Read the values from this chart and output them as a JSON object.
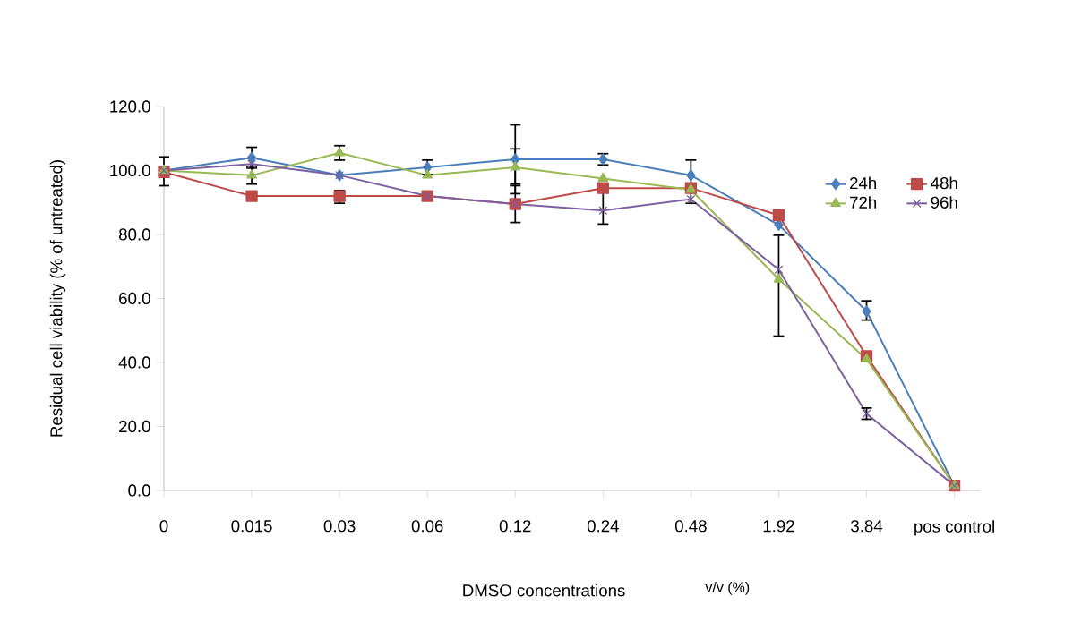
{
  "chart_data": {
    "type": "line",
    "xlabel": "DMSO concentrations",
    "ylabel": "Residual cell viability (% of untreated)",
    "annotations": [
      "v/v (%)"
    ],
    "categories": [
      "0",
      "0.015",
      "0.03",
      "0.06",
      "0.12",
      "0.24",
      "0.48",
      "1.92",
      "3.84",
      "pos control"
    ],
    "ylim": [
      0,
      120
    ],
    "yticks": [
      {
        "value": 0,
        "label": "0.0"
      },
      {
        "value": 20,
        "label": "20.0"
      },
      {
        "value": 40,
        "label": "40.0"
      },
      {
        "value": 60,
        "label": "60.0"
      },
      {
        "value": 80,
        "label": "80.0"
      },
      {
        "value": 100,
        "label": "100.0"
      },
      {
        "value": 120,
        "label": "120.0"
      }
    ],
    "legend": "top right",
    "series": [
      {
        "name": "24h",
        "color": "#4a7ebb",
        "marker": "diamond",
        "values": [
          100,
          104,
          98.5,
          101,
          103.5,
          103.5,
          98.5,
          83,
          56,
          1.5
        ],
        "errors": [
          [
            95,
            104.5
          ],
          [
            100.5,
            107.5
          ],
          null,
          [
            98.5,
            103.5
          ],
          [
            92.5,
            114.5
          ],
          [
            101.5,
            105.5
          ],
          [
            89.5,
            103.5
          ],
          null,
          [
            53,
            59.5
          ],
          null
        ]
      },
      {
        "name": "48h",
        "color": "#be4b48",
        "marker": "square",
        "values": [
          99.5,
          92,
          92,
          92,
          89.5,
          94.5,
          94.5,
          86,
          42,
          1.5
        ],
        "errors": [
          null,
          null,
          [
            89.5,
            94
          ],
          null,
          null,
          null,
          null,
          null,
          null,
          null
        ]
      },
      {
        "name": "72h",
        "color": "#98b954",
        "marker": "triangle",
        "values": [
          100,
          98.5,
          105.5,
          98.5,
          101,
          97.5,
          94,
          66,
          41,
          1.5
        ],
        "errors": [
          null,
          [
            95.5,
            101.5
          ],
          [
            103,
            108
          ],
          null,
          [
            95.5,
            107
          ],
          null,
          null,
          [
            48,
            80
          ],
          null,
          null
        ]
      },
      {
        "name": "96h",
        "color": "#7d60a0",
        "marker": "cross",
        "values": [
          100,
          102,
          98.5,
          92,
          89.5,
          87.5,
          91,
          69,
          24,
          1.5
        ],
        "errors": [
          null,
          null,
          null,
          null,
          [
            83.5,
            95.5
          ],
          [
            83,
            94
          ],
          null,
          null,
          [
            22,
            26
          ],
          null
        ]
      }
    ]
  }
}
